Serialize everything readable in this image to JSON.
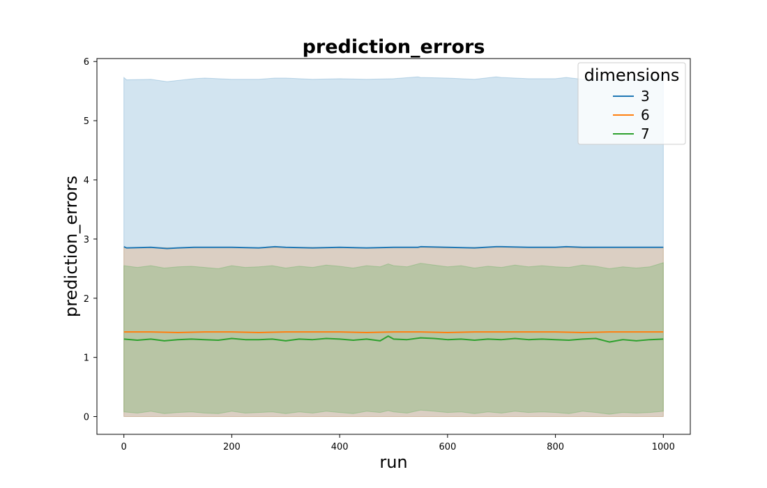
{
  "chart_data": {
    "type": "line",
    "title": "prediction_errors",
    "xlabel": "run",
    "ylabel": "prediction_errors",
    "xlim": [
      -50,
      1050
    ],
    "ylim": [
      -0.3,
      6.05
    ],
    "x_ticks": [
      0,
      200,
      400,
      600,
      800,
      1000
    ],
    "y_ticks": [
      0,
      1,
      2,
      3,
      4,
      5,
      6
    ],
    "grid": false,
    "legend": {
      "title": "dimensions",
      "position": "top-right"
    },
    "series": [
      {
        "name": "3",
        "color": "#1f77b4",
        "x": [
          0,
          5,
          50,
          80,
          100,
          130,
          150,
          200,
          250,
          280,
          300,
          350,
          400,
          450,
          500,
          545,
          550,
          600,
          650,
          690,
          700,
          750,
          800,
          820,
          850,
          900,
          950,
          1000
        ],
        "values": [
          2.87,
          2.85,
          2.86,
          2.84,
          2.85,
          2.86,
          2.86,
          2.86,
          2.85,
          2.87,
          2.86,
          2.85,
          2.86,
          2.85,
          2.86,
          2.86,
          2.87,
          2.86,
          2.85,
          2.87,
          2.87,
          2.86,
          2.86,
          2.87,
          2.86,
          2.86,
          2.86,
          2.86
        ],
        "band_upper": [
          5.73,
          5.69,
          5.7,
          5.66,
          5.68,
          5.71,
          5.72,
          5.7,
          5.7,
          5.72,
          5.72,
          5.7,
          5.71,
          5.7,
          5.71,
          5.74,
          5.73,
          5.72,
          5.7,
          5.74,
          5.73,
          5.71,
          5.71,
          5.73,
          5.7,
          5.7,
          5.71,
          5.72
        ],
        "band_lower": [
          0.0,
          0.0,
          0.0,
          0.0,
          0.0,
          0.0,
          0.0,
          0.0,
          0.0,
          0.0,
          0.0,
          0.0,
          0.0,
          0.0,
          0.0,
          0.0,
          0.0,
          0.0,
          0.0,
          0.0,
          0.0,
          0.0,
          0.0,
          0.0,
          0.0,
          0.0,
          0.0,
          0.0
        ]
      },
      {
        "name": "6",
        "color": "#ff7f0e",
        "x": [
          0,
          50,
          100,
          150,
          200,
          250,
          300,
          350,
          400,
          450,
          500,
          550,
          600,
          650,
          700,
          750,
          800,
          850,
          900,
          950,
          1000
        ],
        "values": [
          1.43,
          1.43,
          1.42,
          1.43,
          1.43,
          1.42,
          1.43,
          1.43,
          1.43,
          1.42,
          1.43,
          1.43,
          1.42,
          1.43,
          1.43,
          1.43,
          1.43,
          1.42,
          1.43,
          1.43,
          1.43
        ],
        "band_upper": [
          2.85,
          2.86,
          2.85,
          2.86,
          2.86,
          2.85,
          2.86,
          2.86,
          2.86,
          2.85,
          2.86,
          2.86,
          2.85,
          2.86,
          2.86,
          2.86,
          2.86,
          2.85,
          2.86,
          2.86,
          2.86
        ],
        "band_lower": [
          0.0,
          0.0,
          0.0,
          0.0,
          0.0,
          0.0,
          0.0,
          0.0,
          0.0,
          0.0,
          0.0,
          0.0,
          0.0,
          0.0,
          0.0,
          0.0,
          0.0,
          0.0,
          0.0,
          0.0,
          0.0
        ]
      },
      {
        "name": "7",
        "color": "#2ca02c",
        "x": [
          0,
          25,
          50,
          75,
          100,
          125,
          150,
          175,
          200,
          225,
          250,
          275,
          300,
          325,
          350,
          375,
          400,
          425,
          450,
          475,
          490,
          500,
          525,
          550,
          575,
          600,
          625,
          650,
          675,
          700,
          725,
          750,
          775,
          800,
          825,
          850,
          875,
          900,
          925,
          950,
          975,
          1000
        ],
        "values": [
          1.31,
          1.29,
          1.31,
          1.28,
          1.3,
          1.31,
          1.3,
          1.29,
          1.32,
          1.3,
          1.3,
          1.31,
          1.28,
          1.31,
          1.3,
          1.32,
          1.31,
          1.29,
          1.31,
          1.28,
          1.36,
          1.31,
          1.3,
          1.33,
          1.32,
          1.3,
          1.31,
          1.29,
          1.31,
          1.3,
          1.32,
          1.3,
          1.31,
          1.3,
          1.29,
          1.31,
          1.32,
          1.26,
          1.3,
          1.28,
          1.3,
          1.31
        ],
        "band_upper": [
          2.55,
          2.52,
          2.55,
          2.51,
          2.53,
          2.54,
          2.52,
          2.5,
          2.55,
          2.52,
          2.53,
          2.55,
          2.51,
          2.54,
          2.52,
          2.56,
          2.54,
          2.51,
          2.55,
          2.53,
          2.58,
          2.55,
          2.53,
          2.59,
          2.56,
          2.53,
          2.55,
          2.51,
          2.54,
          2.52,
          2.56,
          2.53,
          2.55,
          2.53,
          2.52,
          2.56,
          2.54,
          2.5,
          2.53,
          2.51,
          2.53,
          2.6
        ],
        "band_lower": [
          0.08,
          0.06,
          0.09,
          0.05,
          0.07,
          0.08,
          0.06,
          0.05,
          0.09,
          0.06,
          0.07,
          0.08,
          0.05,
          0.08,
          0.06,
          0.09,
          0.07,
          0.05,
          0.09,
          0.07,
          0.1,
          0.08,
          0.06,
          0.11,
          0.09,
          0.07,
          0.08,
          0.05,
          0.08,
          0.06,
          0.09,
          0.07,
          0.08,
          0.07,
          0.05,
          0.09,
          0.07,
          0.04,
          0.07,
          0.06,
          0.07,
          0.09
        ]
      }
    ]
  }
}
